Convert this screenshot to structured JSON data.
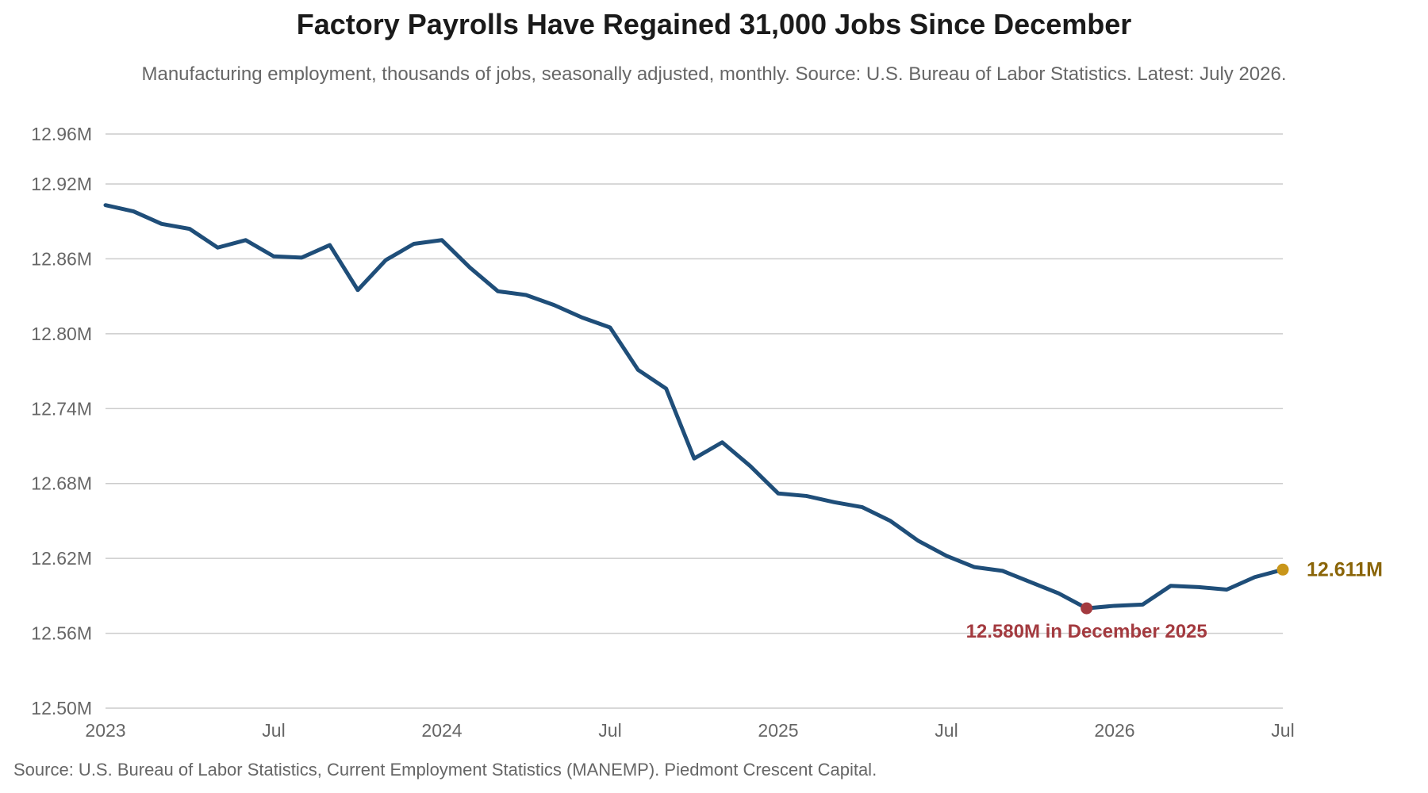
{
  "header": {
    "title": "Factory Payrolls Have Regained 31,000 Jobs Since December",
    "subtitle": "Manufacturing employment, thousands of jobs, seasonally adjusted, monthly. Source: U.S. Bureau of Labor Statistics. Latest: July 2026."
  },
  "footer": {
    "source": "Source: U.S. Bureau of Labor Statistics, Current Employment Statistics (MANEMP). Piedmont Crescent Capital."
  },
  "colors": {
    "line": "#1f4e79",
    "trough": "#a33a3f",
    "latest": "#c9961a",
    "latest_label": "#8a6508",
    "grid": "#cccccc"
  },
  "chart_data": {
    "type": "line",
    "title": "Factory Payrolls Have Regained 31,000 Jobs Since December",
    "xlabel": "",
    "ylabel": "",
    "grid": "horizontal",
    "x_start": "2023-01",
    "x_end": "2026-07",
    "ylim": [
      12500,
      12960
    ],
    "yticks": [
      {
        "value": 12500,
        "label": "12.50M"
      },
      {
        "value": 12560,
        "label": "12.56M"
      },
      {
        "value": 12620,
        "label": "12.62M"
      },
      {
        "value": 12680,
        "label": "12.68M"
      },
      {
        "value": 12740,
        "label": "12.74M"
      },
      {
        "value": 12800,
        "label": "12.80M"
      },
      {
        "value": 12860,
        "label": "12.86M"
      },
      {
        "value": 12920,
        "label": "12.92M"
      },
      {
        "value": 12960,
        "label": "12.96M"
      }
    ],
    "xticks": [
      {
        "date": "2023-01",
        "label": "2023"
      },
      {
        "date": "2023-07",
        "label": "Jul"
      },
      {
        "date": "2024-01",
        "label": "2024"
      },
      {
        "date": "2024-07",
        "label": "Jul"
      },
      {
        "date": "2025-01",
        "label": "2025"
      },
      {
        "date": "2025-07",
        "label": "Jul"
      },
      {
        "date": "2026-01",
        "label": "2026"
      },
      {
        "date": "2026-07",
        "label": "Jul"
      }
    ],
    "series": [
      {
        "x": [
          "2023-01",
          "2023-02",
          "2023-03",
          "2023-04",
          "2023-05",
          "2023-06",
          "2023-07",
          "2023-08",
          "2023-09",
          "2023-10",
          "2023-11",
          "2023-12",
          "2024-01",
          "2024-02",
          "2024-03",
          "2024-04",
          "2024-05",
          "2024-06",
          "2024-07",
          "2024-08",
          "2024-09",
          "2024-10",
          "2024-11",
          "2024-12",
          "2025-01",
          "2025-02",
          "2025-03",
          "2025-04",
          "2025-05",
          "2025-06",
          "2025-07",
          "2025-08",
          "2025-09",
          "2025-10",
          "2025-11",
          "2025-12",
          "2026-01",
          "2026-02",
          "2026-03",
          "2026-04",
          "2026-05",
          "2026-06",
          "2026-07"
        ],
        "values": [
          12903,
          12898,
          12888,
          12884,
          12869,
          12875,
          12862,
          12861,
          12871,
          12835,
          12859,
          12872,
          12875,
          12853,
          12834,
          12831,
          12823,
          12813,
          12805,
          12771,
          12756,
          12700,
          12713,
          12694,
          12672,
          12670,
          12665,
          12661,
          12650,
          12634,
          12622,
          12613,
          12610,
          12601,
          12592,
          12580,
          12582,
          12583,
          12598,
          12597,
          12595,
          12605,
          12611
        ]
      }
    ],
    "annotations": [
      {
        "date": "2025-12",
        "value": 12580,
        "label": "12.580M in December 2025"
      },
      {
        "date": "2026-07",
        "value": 12611,
        "label": "12.611M"
      }
    ]
  }
}
